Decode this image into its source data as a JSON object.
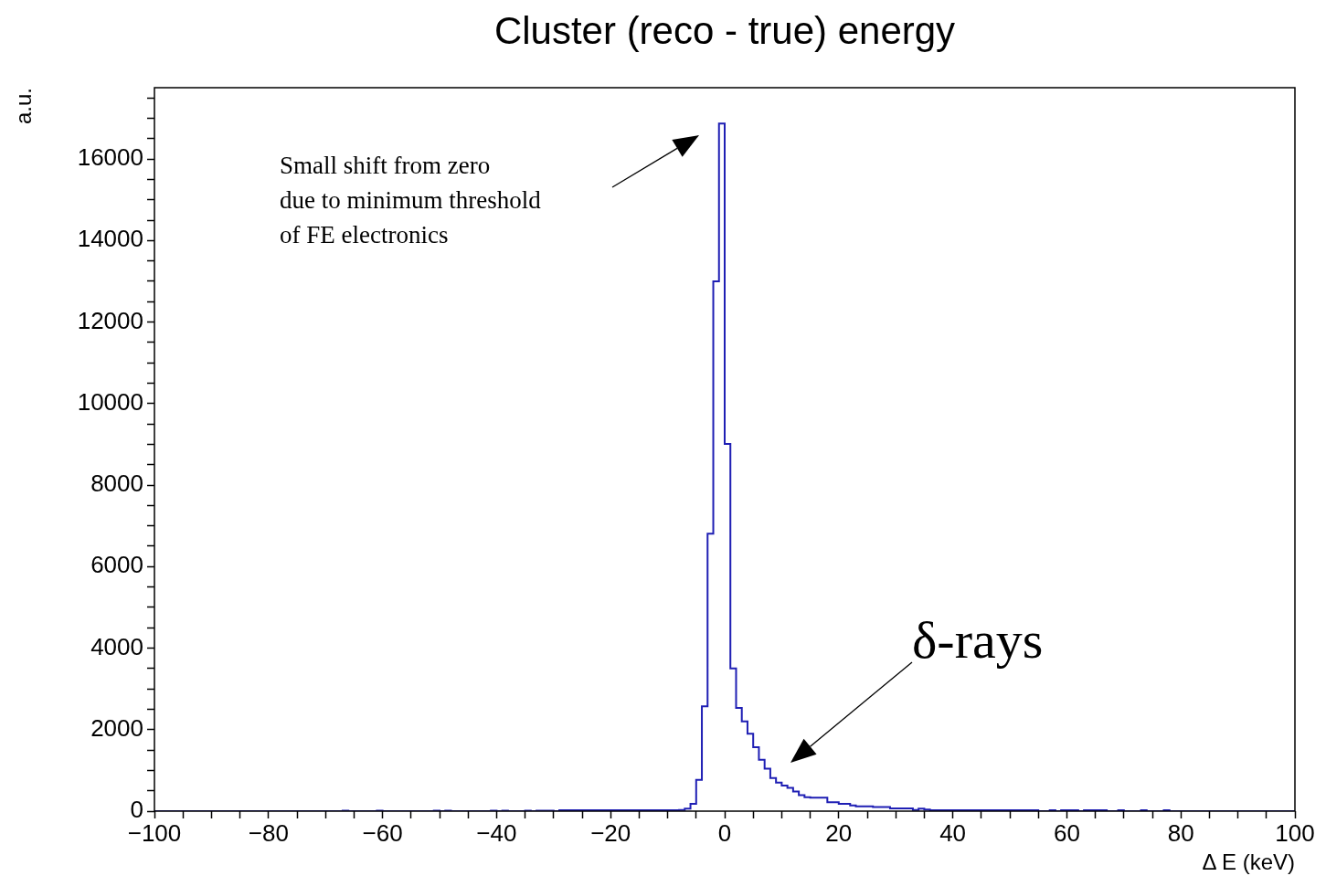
{
  "chart_data": {
    "type": "histogram",
    "title": "Cluster (reco - true) energy",
    "xlabel": "Δ E (keV)",
    "ylabel": "a.u.",
    "color": "#1f1fb4",
    "bins": [
      -100,
      -67,
      -66,
      -61,
      -60,
      -51,
      -50,
      -49,
      -48,
      -41,
      -40,
      -39,
      -38,
      -35,
      -34,
      -33,
      -30,
      -29,
      -8,
      -7,
      -6,
      -5,
      -4,
      -3,
      -2,
      -1,
      0,
      1,
      2,
      3,
      4,
      5,
      6,
      7,
      8,
      9,
      10,
      11,
      12,
      13,
      14,
      15,
      18,
      20,
      22,
      23,
      26,
      29,
      33,
      34,
      35,
      36,
      55,
      57,
      58,
      59,
      62,
      63,
      67,
      69,
      70,
      73,
      74,
      77,
      78,
      100
    ],
    "values": [
      0,
      10,
      0,
      10,
      0,
      10,
      0,
      10,
      0,
      10,
      0,
      10,
      0,
      10,
      0,
      10,
      0,
      20,
      30,
      60,
      180,
      770,
      2570,
      6810,
      13000,
      16870,
      9010,
      3500,
      2530,
      2200,
      1900,
      1570,
      1260,
      1040,
      810,
      700,
      630,
      570,
      480,
      390,
      340,
      330,
      220,
      180,
      140,
      120,
      100,
      70,
      30,
      60,
      40,
      20,
      0,
      20,
      0,
      20,
      0,
      20,
      0,
      20,
      0,
      20,
      0,
      20,
      0
    ],
    "xlim": [
      -100,
      100
    ],
    "xticks": [
      {
        "value": -100,
        "label": "−100"
      },
      {
        "value": -95,
        "label": null
      },
      {
        "value": -90,
        "label": null
      },
      {
        "value": -85,
        "label": null
      },
      {
        "value": -80,
        "label": "−80"
      },
      {
        "value": -75,
        "label": null
      },
      {
        "value": -70,
        "label": null
      },
      {
        "value": -65,
        "label": null
      },
      {
        "value": -60,
        "label": "−60"
      },
      {
        "value": -55,
        "label": null
      },
      {
        "value": -50,
        "label": null
      },
      {
        "value": -45,
        "label": null
      },
      {
        "value": -40,
        "label": "−40"
      },
      {
        "value": -35,
        "label": null
      },
      {
        "value": -30,
        "label": null
      },
      {
        "value": -25,
        "label": null
      },
      {
        "value": -20,
        "label": "−20"
      },
      {
        "value": -15,
        "label": null
      },
      {
        "value": -10,
        "label": null
      },
      {
        "value": -5,
        "label": null
      },
      0,
      {
        "value": 5,
        "label": null
      },
      {
        "value": 10,
        "label": null
      },
      {
        "value": 15,
        "label": null
      },
      20,
      {
        "value": 25,
        "label": null
      },
      {
        "value": 30,
        "label": null
      },
      {
        "value": 35,
        "label": null
      },
      40,
      {
        "value": 45,
        "label": null
      },
      {
        "value": 50,
        "label": null
      },
      {
        "value": 55,
        "label": null
      },
      60,
      {
        "value": 65,
        "label": null
      },
      {
        "value": 70,
        "label": null
      },
      {
        "value": 75,
        "label": null
      },
      80,
      {
        "value": 85,
        "label": null
      },
      {
        "value": 90,
        "label": null
      },
      {
        "value": 95,
        "label": null
      },
      100
    ],
    "ylim": [
      0,
      17750
    ],
    "yticks": [
      0,
      {
        "value": 500,
        "label": null
      },
      {
        "value": 1000,
        "label": null
      },
      {
        "value": 1500,
        "label": null
      },
      2000,
      {
        "value": 2500,
        "label": null
      },
      {
        "value": 3000,
        "label": null
      },
      {
        "value": 3500,
        "label": null
      },
      4000,
      {
        "value": 4500,
        "label": null
      },
      {
        "value": 5000,
        "label": null
      },
      {
        "value": 5500,
        "label": null
      },
      6000,
      {
        "value": 6500,
        "label": null
      },
      {
        "value": 7000,
        "label": null
      },
      {
        "value": 7500,
        "label": null
      },
      8000,
      {
        "value": 8500,
        "label": null
      },
      {
        "value": 9000,
        "label": null
      },
      {
        "value": 9500,
        "label": null
      },
      10000,
      {
        "value": 10500,
        "label": null
      },
      {
        "value": 11000,
        "label": null
      },
      {
        "value": 11500,
        "label": null
      },
      12000,
      {
        "value": 12500,
        "label": null
      },
      {
        "value": 13000,
        "label": null
      },
      {
        "value": 13500,
        "label": null
      },
      14000,
      {
        "value": 14500,
        "label": null
      },
      {
        "value": 15000,
        "label": null
      },
      {
        "value": 15500,
        "label": null
      },
      16000,
      {
        "value": 16500,
        "label": null
      },
      {
        "value": 17000,
        "label": null
      },
      {
        "value": 17500,
        "label": null
      }
    ],
    "annotations": [
      "Small shift from zero\ndue to minimum threshold\nof FE electronics",
      "δ-rays"
    ]
  }
}
